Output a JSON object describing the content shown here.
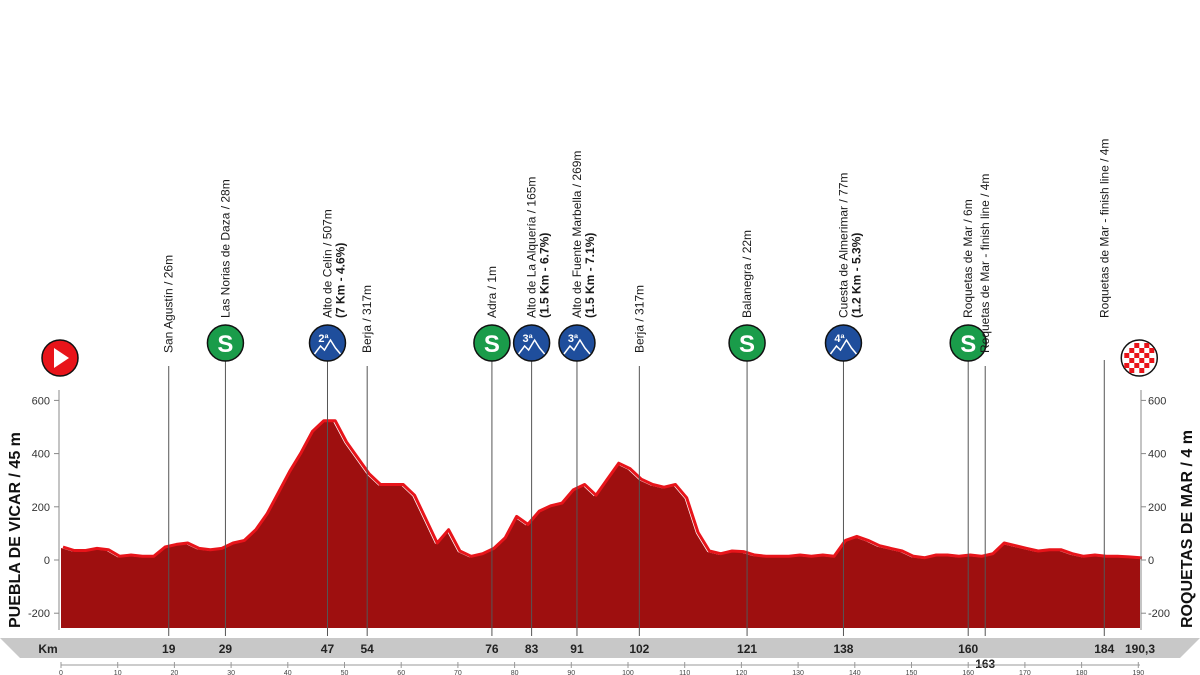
{
  "chart_data": {
    "type": "area",
    "start_label": "PUEBLA DE VICAR / 45 m",
    "finish_label": "ROQUETAS DE MAR / 4 m",
    "km_label": "Km",
    "total_km_label": "190,3",
    "total_km": 190.3,
    "ylim": [
      -250,
      700
    ],
    "yticks": [
      600,
      400,
      200,
      0,
      -200
    ],
    "xticks": [
      0,
      10,
      20,
      30,
      40,
      50,
      60,
      70,
      80,
      90,
      100,
      110,
      120,
      130,
      140,
      150,
      160,
      170,
      180,
      190
    ],
    "colors": {
      "profile": "#9e0f0f",
      "profile_edge": "#e8141a",
      "sprint": "#1a9c4a",
      "climb": "#1f4e9c",
      "start": "#e8141a",
      "finish": "#e8141a"
    },
    "profile": {
      "km": [
        0,
        2,
        4,
        6,
        8,
        10,
        12,
        14,
        16,
        18,
        20,
        22,
        24,
        26,
        28,
        30,
        32,
        34,
        36,
        38,
        40,
        42,
        44,
        46,
        48,
        50,
        52,
        54,
        56,
        58,
        60,
        62,
        64,
        66,
        68,
        70,
        72,
        74,
        76,
        78,
        80,
        82,
        84,
        86,
        88,
        90,
        92,
        94,
        96,
        98,
        100,
        102,
        104,
        106,
        108,
        110,
        112,
        114,
        116,
        118,
        120,
        122,
        124,
        126,
        128,
        130,
        132,
        134,
        136,
        138,
        140,
        142,
        144,
        146,
        148,
        150,
        152,
        154,
        156,
        158,
        160,
        162,
        164,
        166,
        168,
        170,
        172,
        174,
        176,
        178,
        180,
        182,
        184,
        186,
        188,
        190.3
      ],
      "alt": [
        45,
        32,
        32,
        40,
        35,
        10,
        15,
        10,
        10,
        45,
        55,
        60,
        40,
        35,
        40,
        60,
        70,
        110,
        170,
        250,
        330,
        400,
        480,
        520,
        520,
        440,
        380,
        320,
        280,
        280,
        280,
        240,
        150,
        60,
        110,
        30,
        10,
        20,
        40,
        80,
        160,
        130,
        180,
        200,
        210,
        260,
        280,
        240,
        300,
        360,
        340,
        300,
        280,
        270,
        280,
        230,
        100,
        30,
        20,
        30,
        28,
        15,
        10,
        10,
        10,
        15,
        10,
        15,
        10,
        70,
        85,
        70,
        50,
        40,
        30,
        10,
        5,
        15,
        15,
        10,
        15,
        10,
        20,
        60,
        50,
        40,
        30,
        35,
        35,
        20,
        10,
        15,
        10,
        10,
        8,
        4
      ]
    },
    "points": [
      {
        "km": 19,
        "km_label": "19",
        "text": "San Agustín / 26m",
        "sub": "",
        "icon": "none",
        "badge": "",
        "num_label": ""
      },
      {
        "km": 29,
        "km_label": "29",
        "text": "Las Norias de Daza / 28m",
        "sub": "",
        "icon": "sprint",
        "badge": "S",
        "num_label": ""
      },
      {
        "km": 47,
        "km_label": "47",
        "text": "Alto de Celín / 507m",
        "sub": "(7 Km - 4.6%)",
        "icon": "climb",
        "badge": "2ª",
        "num_label": ""
      },
      {
        "km": 54,
        "km_label": "54",
        "text": "Berja / 317m",
        "sub": "",
        "icon": "none",
        "badge": "",
        "num_label": ""
      },
      {
        "km": 76,
        "km_label": "76",
        "text": "Adra / 1m",
        "sub": "",
        "icon": "sprint",
        "badge": "S",
        "num_label": ""
      },
      {
        "km": 83,
        "km_label": "83",
        "text": "Alto de La Alquería / 165m",
        "sub": "(1.5 Km - 6.7%)",
        "icon": "climb",
        "badge": "3ª",
        "num_label": ""
      },
      {
        "km": 91,
        "km_label": "91",
        "text": "Alto de Fuente Marbella / 269m",
        "sub": "(1.5 Km - 7.1%)",
        "icon": "climb",
        "badge": "3ª",
        "num_label": ""
      },
      {
        "km": 102,
        "km_label": "102",
        "text": "Berja / 317m",
        "sub": "",
        "icon": "none",
        "badge": "",
        "num_label": ""
      },
      {
        "km": 121,
        "km_label": "121",
        "text": "Balanegra / 22m",
        "sub": "",
        "icon": "sprint",
        "badge": "S",
        "num_label": ""
      },
      {
        "km": 138,
        "km_label": "138",
        "text": "Cuesta de Almerimar / 77m",
        "sub": "(1.2 Km - 5.3%)",
        "icon": "climb",
        "badge": "4ª",
        "num_label": ""
      },
      {
        "km": 160,
        "km_label": "160",
        "text": "Roquetas de Mar / 6m",
        "sub": "",
        "icon": "sprint",
        "badge": "S",
        "num_label": ""
      },
      {
        "km": 163,
        "km_label": "163",
        "text": "Roquetas de Mar - finish line / 4m",
        "sub": "",
        "icon": "none",
        "badge": "",
        "num_label": "163"
      },
      {
        "km": 184,
        "km_label": "184",
        "text": "Roquetas de Mar - finish line / 4m",
        "sub": "",
        "icon": "finish",
        "badge": "",
        "num_label": ""
      }
    ]
  }
}
